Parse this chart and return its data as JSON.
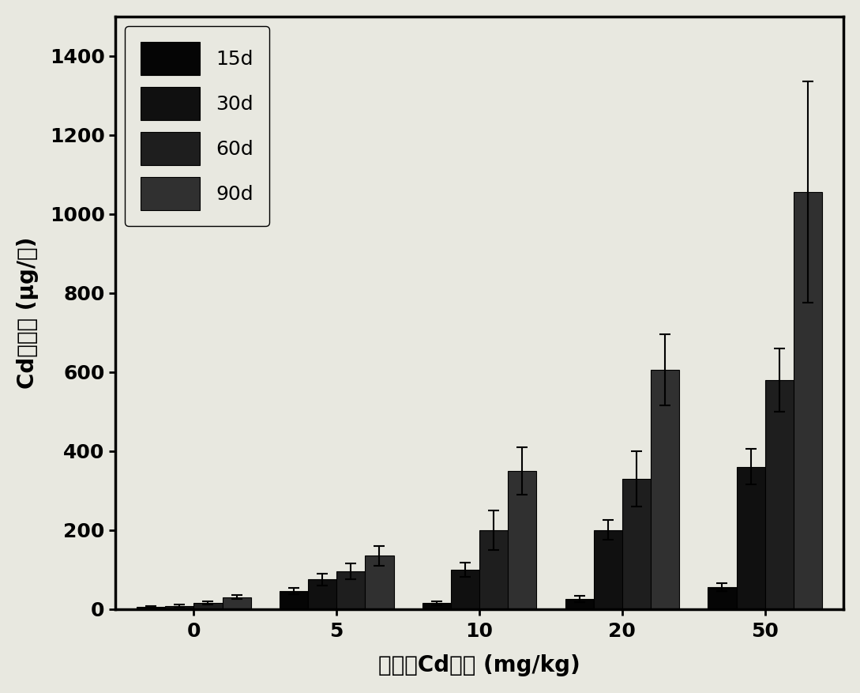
{
  "categories": [
    0,
    5,
    10,
    20,
    50
  ],
  "x_labels": [
    "0",
    "5",
    "10",
    "20",
    "50"
  ],
  "series_order": [
    "15d",
    "30d",
    "60d",
    "90d"
  ],
  "values": {
    "15d": [
      5,
      45,
      15,
      25,
      55
    ],
    "30d": [
      8,
      75,
      100,
      200,
      360
    ],
    "60d": [
      15,
      95,
      200,
      330,
      580
    ],
    "90d": [
      30,
      135,
      350,
      605,
      1055
    ]
  },
  "errors": {
    "15d": [
      2,
      8,
      5,
      8,
      10
    ],
    "30d": [
      3,
      15,
      18,
      25,
      45
    ],
    "60d": [
      4,
      20,
      50,
      70,
      80
    ],
    "90d": [
      5,
      25,
      60,
      90,
      280
    ]
  },
  "colors": {
    "15d": "#050505",
    "30d": "#101010",
    "60d": "#1e1e1e",
    "90d": "#303030"
  },
  "hatches": {
    "15d": null,
    "30d": null,
    "60d": null,
    "90d": null
  },
  "ylabel": "Cd累积量 (μg/株)",
  "xlabel": "土壤中Cd含量 (mg/kg)",
  "ylim": [
    0,
    1500
  ],
  "yticks": [
    0,
    200,
    400,
    600,
    800,
    1000,
    1200,
    1400
  ],
  "bar_width": 0.2,
  "background_color": "#e8e8e0",
  "plot_bg_color": "#e8e8e0",
  "axis_fontsize": 20,
  "tick_fontsize": 18,
  "legend_fontsize": 18
}
